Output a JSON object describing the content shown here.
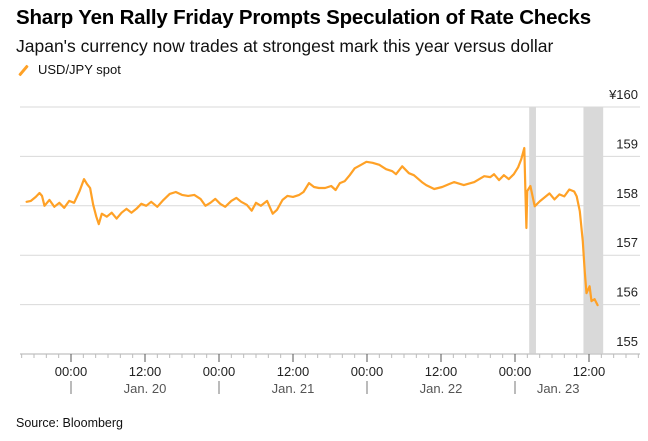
{
  "header": {
    "title": "Sharp Yen Rally Friday Prompts Speculation of Rate Checks",
    "subtitle": "Japan's currency now trades at strongest mark this year versus dollar"
  },
  "footer": {
    "source": "Source: Bloomberg"
  },
  "colors": {
    "line": "#ffa126",
    "grid": "#d9d9d9",
    "shade": "#d9d9d9",
    "axis": "#cccccc"
  },
  "chart_data": {
    "type": "line",
    "title": "Sharp Yen Rally Friday Prompts Speculation of Rate Checks",
    "subtitle": "Japan's currency now trades at strongest mark this year versus dollar",
    "xlabel": "",
    "ylabel": "",
    "x_unit": "hours since first 00:00 tick",
    "xlim": [
      -8.3,
      92.5
    ],
    "ylim": [
      155,
      160
    ],
    "y_ticks": [
      {
        "value": 160,
        "label": "¥160"
      },
      {
        "value": 159,
        "label": "159"
      },
      {
        "value": 158,
        "label": "158"
      },
      {
        "value": 157,
        "label": "157"
      },
      {
        "value": 156,
        "label": "156"
      },
      {
        "value": 155,
        "label": "155"
      }
    ],
    "x_ticks": [
      {
        "x": 0,
        "label": "00:00"
      },
      {
        "x": 12,
        "label": "12:00"
      },
      {
        "x": 24,
        "label": "00:00"
      },
      {
        "x": 36,
        "label": "12:00"
      },
      {
        "x": 48,
        "label": "00:00"
      },
      {
        "x": 60,
        "label": "12:00"
      },
      {
        "x": 72,
        "label": "00:00"
      },
      {
        "x": 84,
        "label": "12:00"
      }
    ],
    "minor_tick_interval_hours": 2,
    "date_labels": [
      {
        "x": 12,
        "label": "Jan. 20"
      },
      {
        "x": 36,
        "label": "Jan. 21"
      },
      {
        "x": 60,
        "label": "Jan. 22"
      },
      {
        "x": 79,
        "label": "Jan. 23"
      }
    ],
    "date_separators": [
      0,
      24,
      48,
      72
    ],
    "grid": true,
    "legend": {
      "position": "top-left",
      "entries": [
        "USD/JPY spot"
      ]
    },
    "shaded_regions": [
      {
        "from": 74.3,
        "to": 75.4
      },
      {
        "from": 83.1,
        "to": 86.3
      }
    ],
    "series": [
      {
        "name": "USD/JPY spot",
        "points": [
          [
            -7.2,
            158.08
          ],
          [
            -6.5,
            158.1
          ],
          [
            -5.7,
            158.18
          ],
          [
            -5.1,
            158.26
          ],
          [
            -4.7,
            158.2
          ],
          [
            -4.3,
            158.0
          ],
          [
            -3.5,
            158.12
          ],
          [
            -2.7,
            157.98
          ],
          [
            -1.9,
            158.06
          ],
          [
            -1.1,
            157.96
          ],
          [
            -0.3,
            158.1
          ],
          [
            0.5,
            158.06
          ],
          [
            1.4,
            158.3
          ],
          [
            2.1,
            158.54
          ],
          [
            2.6,
            158.44
          ],
          [
            3.1,
            158.36
          ],
          [
            3.6,
            158.02
          ],
          [
            4.1,
            157.78
          ],
          [
            4.5,
            157.63
          ],
          [
            5.0,
            157.84
          ],
          [
            5.8,
            157.78
          ],
          [
            6.6,
            157.86
          ],
          [
            7.4,
            157.74
          ],
          [
            8.2,
            157.86
          ],
          [
            9.0,
            157.94
          ],
          [
            9.8,
            157.86
          ],
          [
            10.6,
            157.94
          ],
          [
            11.4,
            158.04
          ],
          [
            12.2,
            158.0
          ],
          [
            13.0,
            158.08
          ],
          [
            14.0,
            157.98
          ],
          [
            15.0,
            158.12
          ],
          [
            16.0,
            158.24
          ],
          [
            17.0,
            158.28
          ],
          [
            18.0,
            158.22
          ],
          [
            19.0,
            158.2
          ],
          [
            20.0,
            158.22
          ],
          [
            21.0,
            158.14
          ],
          [
            21.8,
            158.0
          ],
          [
            22.6,
            158.06
          ],
          [
            23.4,
            158.14
          ],
          [
            24.2,
            158.04
          ],
          [
            25.0,
            157.98
          ],
          [
            26.0,
            158.1
          ],
          [
            26.8,
            158.16
          ],
          [
            27.6,
            158.08
          ],
          [
            28.5,
            158.02
          ],
          [
            29.3,
            157.9
          ],
          [
            30.0,
            158.06
          ],
          [
            30.8,
            158.0
          ],
          [
            31.8,
            158.1
          ],
          [
            32.7,
            157.84
          ],
          [
            33.4,
            157.92
          ],
          [
            34.3,
            158.12
          ],
          [
            35.1,
            158.2
          ],
          [
            36.0,
            158.18
          ],
          [
            37.0,
            158.22
          ],
          [
            37.7,
            158.28
          ],
          [
            38.6,
            158.46
          ],
          [
            39.4,
            158.38
          ],
          [
            40.2,
            158.36
          ],
          [
            41.2,
            158.36
          ],
          [
            42.2,
            158.4
          ],
          [
            42.9,
            158.32
          ],
          [
            43.6,
            158.46
          ],
          [
            44.4,
            158.5
          ],
          [
            45.2,
            158.62
          ],
          [
            46.0,
            158.76
          ],
          [
            46.9,
            158.82
          ],
          [
            47.9,
            158.89
          ],
          [
            48.9,
            158.87
          ],
          [
            50.0,
            158.83
          ],
          [
            51.1,
            158.74
          ],
          [
            52.1,
            158.7
          ],
          [
            52.7,
            158.64
          ],
          [
            53.7,
            158.8
          ],
          [
            54.8,
            158.66
          ],
          [
            55.6,
            158.62
          ],
          [
            56.9,
            158.48
          ],
          [
            57.6,
            158.42
          ],
          [
            58.9,
            158.34
          ],
          [
            60.2,
            158.38
          ],
          [
            61.3,
            158.44
          ],
          [
            62.1,
            158.48
          ],
          [
            63.7,
            158.42
          ],
          [
            65.4,
            158.48
          ],
          [
            67.0,
            158.6
          ],
          [
            68.0,
            158.58
          ],
          [
            68.6,
            158.64
          ],
          [
            69.4,
            158.52
          ],
          [
            70.2,
            158.62
          ],
          [
            71.0,
            158.54
          ],
          [
            71.8,
            158.64
          ],
          [
            72.5,
            158.78
          ],
          [
            73.0,
            158.94
          ],
          [
            73.5,
            159.17
          ],
          [
            73.7,
            158.22
          ],
          [
            73.85,
            157.55
          ],
          [
            74.0,
            158.3
          ],
          [
            74.5,
            158.4
          ],
          [
            75.2,
            157.99
          ],
          [
            76.0,
            158.09
          ],
          [
            76.8,
            158.17
          ],
          [
            77.6,
            158.25
          ],
          [
            78.4,
            158.13
          ],
          [
            79.2,
            158.23
          ],
          [
            80.0,
            158.19
          ],
          [
            80.8,
            158.33
          ],
          [
            81.6,
            158.29
          ],
          [
            82.0,
            158.19
          ],
          [
            82.5,
            157.89
          ],
          [
            83.0,
            157.28
          ],
          [
            83.3,
            156.68
          ],
          [
            83.6,
            156.23
          ],
          [
            84.1,
            156.37
          ],
          [
            84.4,
            156.07
          ],
          [
            84.9,
            156.11
          ],
          [
            85.4,
            155.99
          ]
        ]
      }
    ]
  }
}
